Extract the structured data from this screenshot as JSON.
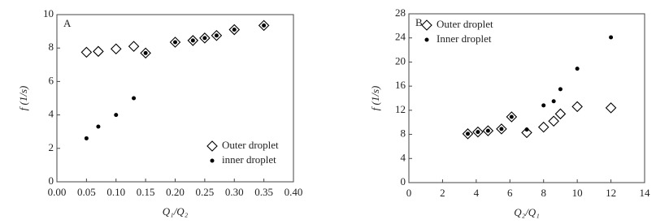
{
  "chart_data": [
    {
      "type": "scatter",
      "panel_label": "A",
      "xlabel": "Q₁/Q₂",
      "ylabel": "f (1/s)",
      "xlim": [
        0,
        0.4
      ],
      "ylim": [
        0,
        10
      ],
      "xticks": [
        {
          "value": 0,
          "label": "0.00"
        },
        {
          "value": 0.05,
          "label": "0.05"
        },
        {
          "value": 0.1,
          "label": "0.10"
        },
        {
          "value": 0.15,
          "label": "0.15"
        },
        {
          "value": 0.2,
          "label": "0.20"
        },
        {
          "value": 0.25,
          "label": "0.25"
        },
        {
          "value": 0.3,
          "label": "0.30"
        },
        {
          "value": 0.35,
          "label": "0.35"
        },
        {
          "value": 0.4,
          "label": "0.40"
        }
      ],
      "yticks": [
        0,
        2,
        4,
        6,
        8,
        10
      ],
      "legend": "lower right",
      "series": [
        {
          "name": "Outer droplet",
          "marker": "diamond",
          "color": "#000000",
          "x": [
            0.05,
            0.07,
            0.1,
            0.13,
            0.15,
            0.2,
            0.23,
            0.25,
            0.27,
            0.3,
            0.35
          ],
          "values": [
            7.75,
            7.8,
            7.95,
            8.1,
            7.7,
            8.35,
            8.45,
            8.6,
            8.75,
            9.1,
            9.35
          ]
        },
        {
          "name": "inner droplet",
          "marker": "dot",
          "color": "#000000",
          "x": [
            0.05,
            0.07,
            0.1,
            0.13,
            0.15,
            0.2,
            0.23,
            0.25,
            0.27,
            0.3,
            0.35
          ],
          "values": [
            2.6,
            3.3,
            4.0,
            5.0,
            7.7,
            8.35,
            8.45,
            8.6,
            8.75,
            9.1,
            9.35
          ]
        }
      ]
    },
    {
      "type": "scatter",
      "panel_label": "B",
      "xlabel": "Q₂/Q₁",
      "ylabel": "f (1/s)",
      "xlim": [
        0,
        14
      ],
      "ylim": [
        0,
        28
      ],
      "xticks": [
        0,
        2,
        4,
        6,
        8,
        10,
        12,
        14
      ],
      "yticks": [
        0,
        4,
        8,
        12,
        16,
        20,
        24,
        28
      ],
      "legend": "upper left",
      "series": [
        {
          "name": "Outer droplet",
          "marker": "diamond",
          "color": "#000000",
          "x": [
            3.5,
            4.1,
            4.7,
            5.5,
            6.1,
            7.0,
            8.0,
            8.6,
            9.0,
            10.0,
            12.0
          ],
          "values": [
            8.1,
            8.4,
            8.6,
            8.9,
            10.9,
            8.3,
            9.2,
            10.2,
            11.4,
            12.6,
            12.4
          ]
        },
        {
          "name": "Inner droplet",
          "marker": "dot",
          "color": "#000000",
          "x": [
            3.5,
            4.1,
            4.7,
            5.5,
            6.1,
            7.0,
            8.0,
            8.6,
            9.0,
            10.0,
            12.0
          ],
          "values": [
            8.1,
            8.4,
            8.6,
            8.9,
            10.9,
            8.8,
            12.8,
            13.5,
            15.5,
            18.9,
            24.1
          ]
        }
      ]
    }
  ]
}
